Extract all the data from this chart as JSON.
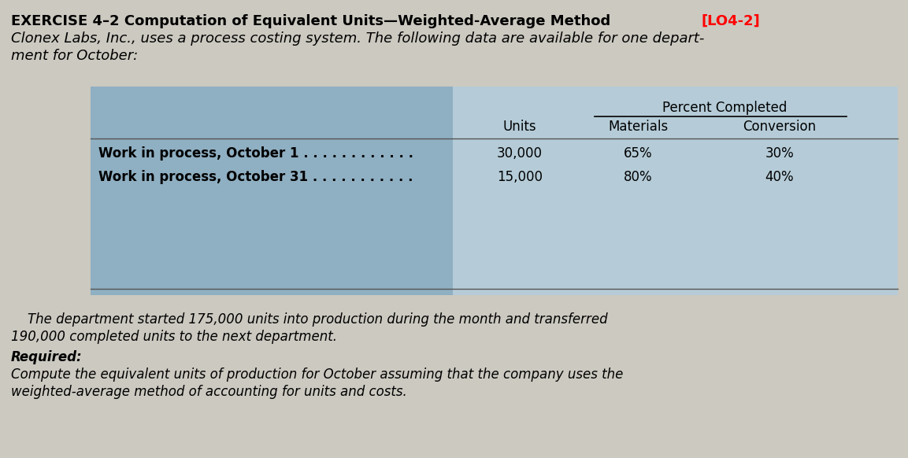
{
  "bg_color": "#cbc9c0",
  "title_bold": "EXERCISE 4–2 Computation of Equivalent Units—Weighted-Average Method ",
  "title_red": "[LO4-2]",
  "title_line2": "Clonex Labs, Inc., uses a process costing system. The following data are available for one depart-",
  "title_line3": "ment for October:",
  "table_header_group": "Percent Completed",
  "col_headers": [
    "Units",
    "Materials",
    "Conversion"
  ],
  "row1_label": "Work in process, October 1 . . . . . . . . . . . .",
  "row1_units": "30,000",
  "row1_mat": "65%",
  "row1_conv": "30%",
  "row2_label": "Work in process, October 31 . . . . . . . . . . .",
  "row2_units": "15,000",
  "row2_mat": "80%",
  "row2_conv": "40%",
  "body1": "    The department started 175,000 units into production during the month and transferred",
  "body2": "190,000 completed units to the next department.",
  "required": "Required:",
  "body3": "Compute the equivalent units of production for October assuming that the company uses the",
  "body4": "weighted-average method of accounting for units and costs.",
  "table_bg_left": "#8fafc2",
  "table_bg_right": "#b5ccd8",
  "line_color": "#555555",
  "fs_title": 13,
  "fs_body": 12,
  "fs_table": 12
}
